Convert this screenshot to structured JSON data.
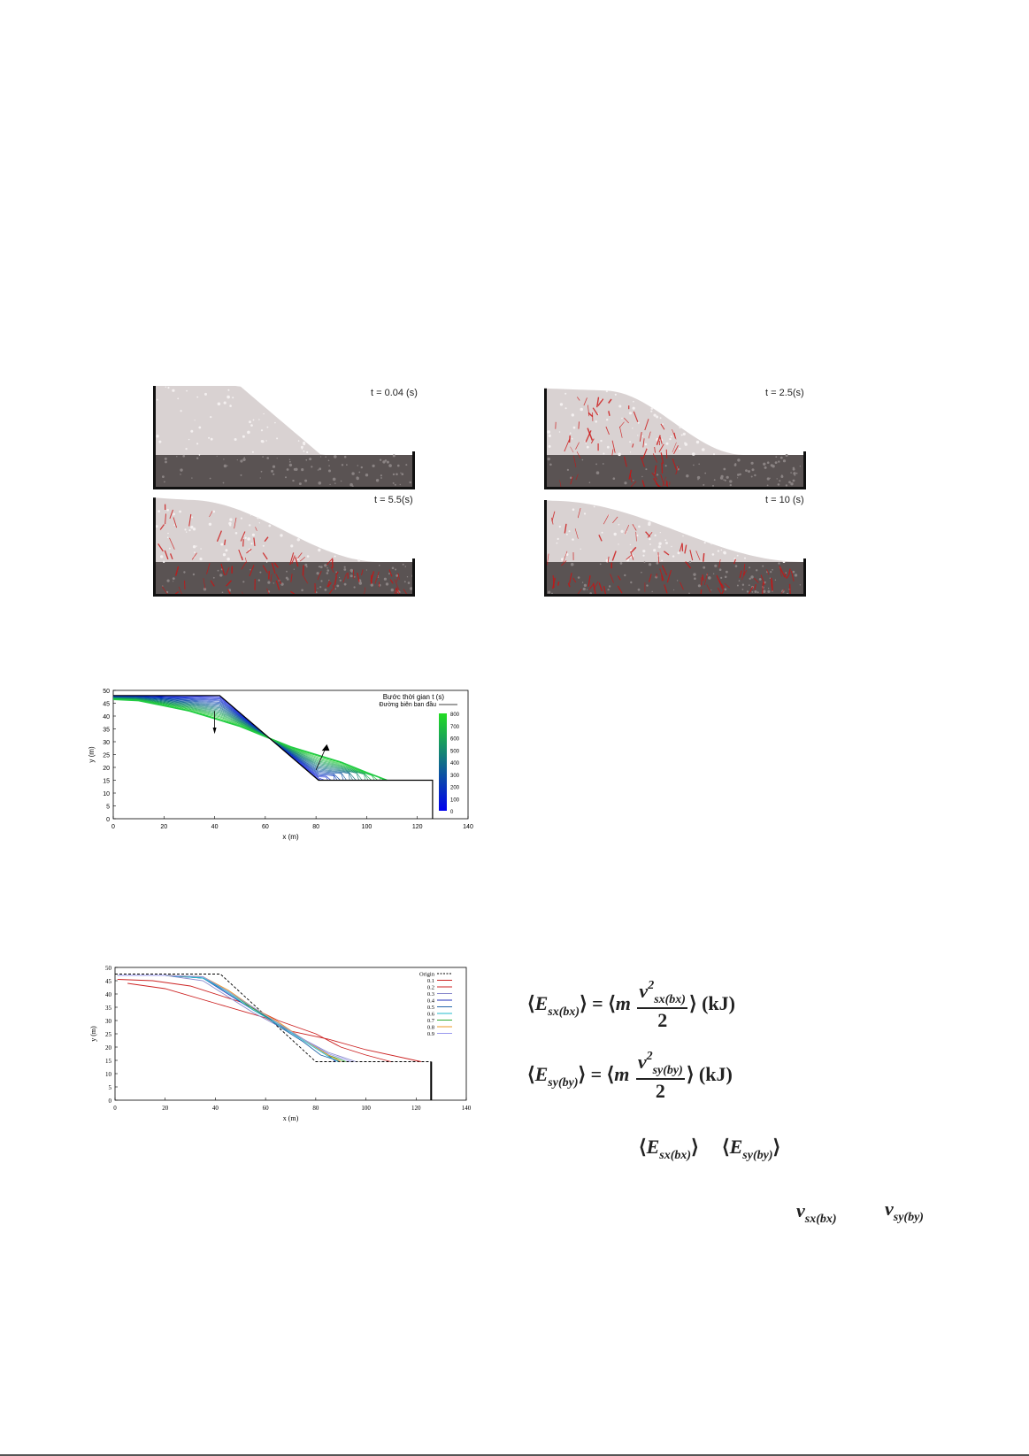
{
  "simulation": {
    "panels": [
      {
        "label": "t = 0.04 (s)",
        "stage": 0.0
      },
      {
        "label": "t = 2.5(s)",
        "stage": 0.35
      },
      {
        "label": "t = 5.5(s)",
        "stage": 0.65
      },
      {
        "label": "t = 10 (s)",
        "stage": 1.0
      }
    ],
    "colors": {
      "top_layer": "#d9d2d2",
      "base_layer": "#5a5353",
      "force_chain": "#cc1111",
      "wall": "#111111"
    }
  },
  "chart_data": [
    {
      "type": "line",
      "xlabel": "x (m)",
      "ylabel": "y (m)",
      "xlim": [
        0,
        140
      ],
      "ylim": [
        0,
        50
      ],
      "xticks": [
        0,
        20,
        40,
        60,
        80,
        100,
        120,
        140
      ],
      "yticks": [
        0,
        5,
        10,
        15,
        20,
        25,
        30,
        35,
        40,
        45,
        50
      ],
      "legend_title": "Bước thời gian t (s)",
      "legend_entries": [
        "Đường biên ban đầu"
      ],
      "colorbar": {
        "ticks": [
          "0",
          "100",
          "200",
          "300",
          "400",
          "500",
          "600",
          "700",
          "800"
        ],
        "min_color": "#0000ee",
        "max_color": "#22dd22"
      },
      "series": [
        {
          "name": "Đường biên ban đầu",
          "x": [
            0,
            42,
            81,
            126,
            126
          ],
          "y": [
            48,
            48,
            15,
            15,
            0
          ],
          "color": "#000000"
        },
        {
          "x": [
            0,
            10,
            20,
            30,
            40,
            50,
            60,
            70,
            80,
            90,
            100,
            108
          ],
          "y": [
            46.5,
            46,
            44,
            42,
            39,
            36,
            32,
            28,
            25,
            22,
            18,
            15
          ],
          "color": "#22cc44"
        }
      ],
      "contour_count": 22
    },
    {
      "type": "line",
      "xlabel": "x (m)",
      "ylabel": "y (m)",
      "xlim": [
        0,
        140
      ],
      "ylim": [
        0,
        50
      ],
      "xticks": [
        0,
        20,
        40,
        60,
        80,
        100,
        120,
        140
      ],
      "yticks": [
        0,
        5,
        10,
        15,
        20,
        25,
        30,
        35,
        40,
        45,
        50
      ],
      "legend_position": "top-right",
      "series": [
        {
          "name": "Origin",
          "x": [
            0,
            42,
            80,
            126
          ],
          "y": [
            47.5,
            47.5,
            14.5,
            14.5
          ],
          "color": "#000000",
          "dash": true
        },
        {
          "name": "0.1",
          "x": [
            5,
            20,
            40,
            60,
            70,
            85,
            100,
            122
          ],
          "y": [
            44,
            42,
            36.5,
            31,
            26,
            23,
            19,
            14.5
          ],
          "color": "#cc2222"
        },
        {
          "name": "0.2",
          "x": [
            1,
            15,
            30,
            50,
            65,
            80,
            90,
            100,
            110
          ],
          "y": [
            45.5,
            45,
            43,
            37,
            30,
            25,
            20,
            17,
            14.5
          ],
          "color": "#cc2222"
        },
        {
          "name": "0.3",
          "x": [
            1,
            20,
            35,
            45,
            55,
            65,
            75,
            85,
            96
          ],
          "y": [
            47,
            47,
            45,
            39,
            33,
            28,
            23,
            18,
            14.5
          ],
          "color": "#8888cc"
        },
        {
          "name": "0.4",
          "x": [
            1,
            20,
            35,
            45,
            55,
            65,
            75,
            85,
            88
          ],
          "y": [
            47,
            47,
            46,
            40,
            34,
            29,
            23,
            17,
            14.5
          ],
          "color": "#2233bb"
        },
        {
          "name": "0.5",
          "x": [
            1,
            20,
            35,
            45,
            55,
            65,
            75,
            82,
            90
          ],
          "y": [
            47,
            47,
            46,
            41,
            35,
            28,
            22,
            17,
            14.5
          ],
          "color": "#2266aa"
        },
        {
          "name": "0.6",
          "x": [
            1,
            20,
            35,
            45,
            55,
            65,
            75,
            85,
            89
          ],
          "y": [
            47,
            47,
            46,
            40.5,
            34,
            28.5,
            22.5,
            16.5,
            14.5
          ],
          "color": "#22bbcc"
        },
        {
          "name": "0.7",
          "x": [
            1,
            20,
            35,
            45,
            55,
            65,
            75,
            85,
            92
          ],
          "y": [
            47,
            47,
            46.5,
            41,
            34.5,
            29,
            23,
            17,
            14.5
          ],
          "color": "#33aa33"
        },
        {
          "name": "0.8",
          "x": [
            1,
            20,
            35,
            45,
            55,
            65,
            75,
            85,
            90
          ],
          "y": [
            47,
            47,
            46.5,
            41.5,
            35,
            29.5,
            23,
            17,
            14.5
          ],
          "color": "#ee9922"
        },
        {
          "name": "0.9",
          "x": [
            1,
            20,
            35,
            45,
            55,
            65,
            75,
            85,
            94
          ],
          "y": [
            47,
            47,
            46.5,
            41,
            35,
            29,
            23,
            17.5,
            14.5
          ],
          "color": "#9999ee"
        }
      ],
      "wall": {
        "x": [
          126,
          126
        ],
        "y": [
          14.5,
          0
        ]
      }
    }
  ],
  "equations": {
    "ex_lhs_main": "E",
    "ex_lhs_sub": "sx(bx)",
    "ex_v_sub": "sx(bx)",
    "ey_lhs_main": "E",
    "ey_lhs_sub": "sy(by)",
    "ey_v_sub": "sy(by)",
    "sup2": "2",
    "m": "m",
    "v": "v",
    "den": "2",
    "unit": "(kJ)",
    "eq": "=",
    "ref_exbx_sub": "sx(bx)",
    "ref_eyby_sub": "sy(by)",
    "ref_vx_sub": "sx(bx)",
    "ref_vy_sub": "sy(by)"
  }
}
